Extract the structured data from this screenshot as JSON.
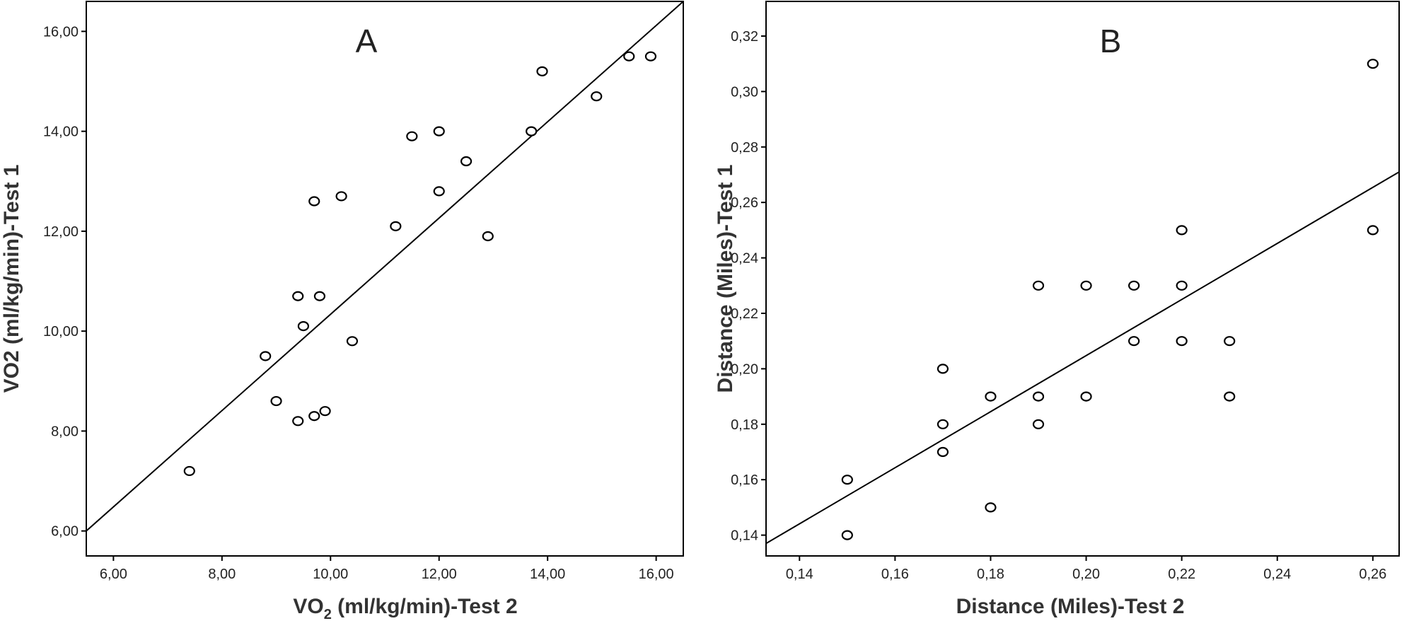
{
  "chart_data": [
    {
      "type": "scatter",
      "panel_label": "A",
      "xlabel_parts": [
        "VO",
        "2",
        " (ml/kg/min)-Test 2"
      ],
      "ylabel": "VO2 (ml/kg/min)-Test 1",
      "xlim": [
        5.5,
        16.5
      ],
      "ylim": [
        5.5,
        16.6
      ],
      "xticks": [
        6,
        8,
        10,
        12,
        14,
        16
      ],
      "yticks": [
        6,
        8,
        10,
        12,
        14,
        16
      ],
      "xtick_labels": [
        "6,00",
        "8,00",
        "10,00",
        "12,00",
        "14,00",
        "16,00"
      ],
      "ytick_labels": [
        "6,00",
        "8,00",
        "10,00",
        "12,00",
        "14,00",
        "16,00"
      ],
      "points": [
        [
          7.4,
          7.2
        ],
        [
          8.8,
          9.5
        ],
        [
          9.0,
          8.6
        ],
        [
          9.4,
          10.7
        ],
        [
          9.4,
          8.2
        ],
        [
          9.5,
          10.1
        ],
        [
          9.7,
          12.6
        ],
        [
          9.7,
          8.3
        ],
        [
          9.8,
          10.7
        ],
        [
          9.9,
          8.4
        ],
        [
          10.2,
          12.7
        ],
        [
          10.4,
          9.8
        ],
        [
          11.2,
          12.1
        ],
        [
          11.5,
          13.9
        ],
        [
          12.0,
          14.0
        ],
        [
          12.0,
          12.8
        ],
        [
          12.5,
          13.4
        ],
        [
          12.9,
          11.9
        ],
        [
          13.7,
          14.0
        ],
        [
          13.9,
          15.2
        ],
        [
          14.9,
          14.7
        ],
        [
          15.5,
          15.5
        ],
        [
          15.9,
          15.5
        ]
      ],
      "fit_line": [
        [
          5.5,
          6.0
        ],
        [
          16.5,
          16.6
        ]
      ],
      "grid": false,
      "legend": "none"
    },
    {
      "type": "scatter",
      "panel_label": "B",
      "xlabel": "Distance (Miles)-Test 2",
      "ylabel": "Distance (Miles)-Test 1",
      "xlim": [
        0.133,
        0.2655
      ],
      "ylim": [
        0.1325,
        0.3325
      ],
      "xticks": [
        0.14,
        0.16,
        0.18,
        0.2,
        0.22,
        0.24,
        0.26
      ],
      "yticks": [
        0.14,
        0.16,
        0.18,
        0.2,
        0.22,
        0.24,
        0.26,
        0.28,
        0.3,
        0.32
      ],
      "xtick_labels": [
        "0,14",
        "0,16",
        "0,18",
        "0,20",
        "0,22",
        "0,24",
        "0,26"
      ],
      "ytick_labels": [
        "0,14",
        "0,16",
        "0,18",
        "0,20",
        "0,22",
        "0,24",
        "0,26",
        "0,28",
        "0,30",
        "0,32"
      ],
      "points": [
        [
          0.15,
          0.16
        ],
        [
          0.15,
          0.14
        ],
        [
          0.17,
          0.2
        ],
        [
          0.17,
          0.18
        ],
        [
          0.17,
          0.17
        ],
        [
          0.18,
          0.19
        ],
        [
          0.18,
          0.15
        ],
        [
          0.19,
          0.23
        ],
        [
          0.19,
          0.19
        ],
        [
          0.19,
          0.18
        ],
        [
          0.2,
          0.23
        ],
        [
          0.2,
          0.19
        ],
        [
          0.21,
          0.23
        ],
        [
          0.21,
          0.21
        ],
        [
          0.22,
          0.25
        ],
        [
          0.22,
          0.23
        ],
        [
          0.22,
          0.21
        ],
        [
          0.23,
          0.21
        ],
        [
          0.23,
          0.19
        ],
        [
          0.26,
          0.31
        ],
        [
          0.26,
          0.25
        ]
      ],
      "fit_line": [
        [
          0.133,
          0.137
        ],
        [
          0.2655,
          0.271
        ]
      ],
      "grid": false,
      "legend": "none"
    }
  ]
}
